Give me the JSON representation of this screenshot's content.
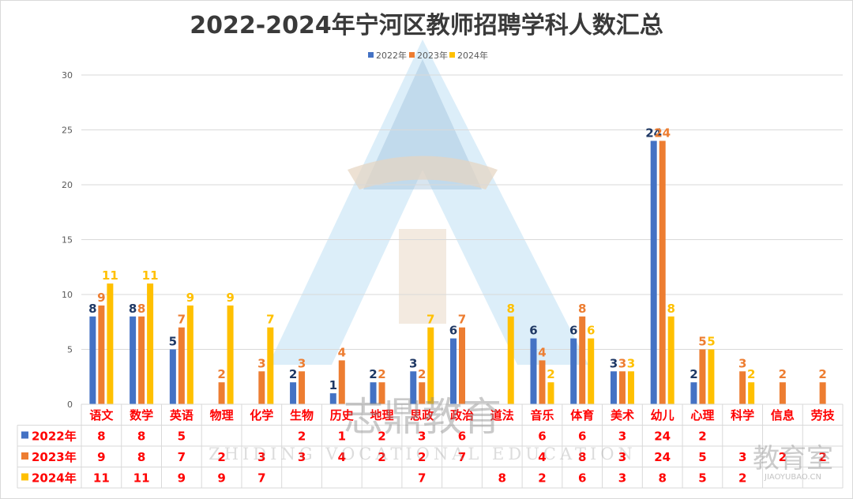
{
  "chart_data": {
    "type": "bar",
    "title": "2022-2024年宁河区教师招聘学科人数汇总",
    "categories": [
      "语文",
      "数学",
      "英语",
      "物理",
      "化学",
      "生物",
      "历史",
      "地理",
      "思政",
      "政治",
      "道法",
      "音乐",
      "体育",
      "美术",
      "幼儿",
      "心理",
      "科学",
      "信息",
      "劳技"
    ],
    "series": [
      {
        "name": "2022年",
        "color": "#4472c4",
        "label_color": "#1f3864",
        "values": [
          8,
          8,
          5,
          null,
          null,
          2,
          1,
          2,
          3,
          6,
          null,
          6,
          6,
          3,
          24,
          2,
          null,
          null,
          null
        ]
      },
      {
        "name": "2023年",
        "color": "#ed7d31",
        "label_color": "#ed7d31",
        "values": [
          9,
          8,
          7,
          2,
          3,
          3,
          4,
          2,
          2,
          7,
          null,
          4,
          8,
          3,
          24,
          5,
          3,
          2,
          2
        ]
      },
      {
        "name": "2024年",
        "color": "#ffc000",
        "label_color": "#ffc000",
        "values": [
          11,
          11,
          9,
          9,
          7,
          null,
          null,
          null,
          7,
          null,
          8,
          2,
          6,
          3,
          8,
          5,
          2,
          null,
          null
        ]
      }
    ],
    "ylim": [
      0,
      30
    ],
    "yticks": [
      0,
      5,
      10,
      15,
      20,
      25,
      30
    ],
    "grid": true,
    "legend_position": "top-center",
    "data_table": true
  },
  "watermark": {
    "brand_cn": "志鼎教育",
    "brand_en": "ZHIDING VOCATIONAL EDUCATION",
    "corner_cn": "教育室",
    "corner_url": "JIAOYUBAO.CN"
  }
}
